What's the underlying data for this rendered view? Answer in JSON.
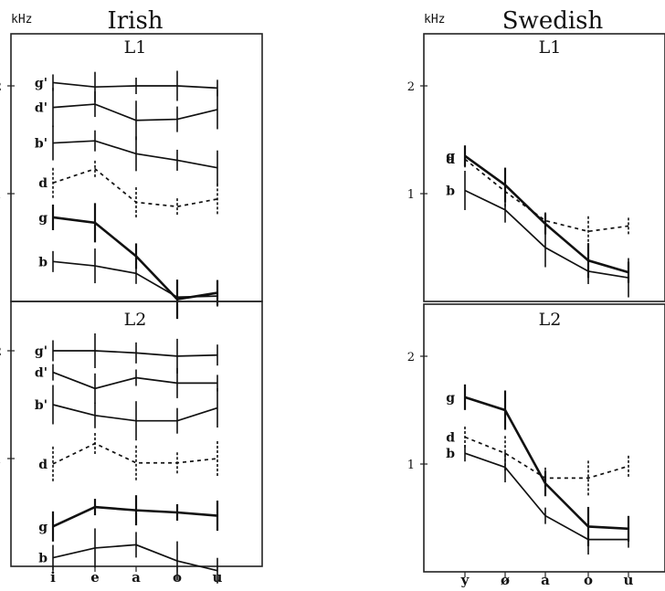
{
  "chart_data": [
    {
      "type": "line",
      "language": "Irish",
      "unit": "kHz",
      "x": [
        "i",
        "e",
        "a",
        "o",
        "u"
      ],
      "ylim": [
        0,
        2.4
      ],
      "yticks": [
        "1",
        "2"
      ],
      "grid": false,
      "panels": [
        {
          "title": "L1",
          "series": [
            {
              "label": "g'",
              "style": "solid",
              "values": [
                2.03,
                1.99,
                2.0,
                2.0,
                1.98
              ]
            },
            {
              "label": "d'",
              "style": "solid",
              "values": [
                1.8,
                1.83,
                1.68,
                1.69,
                1.78
              ]
            },
            {
              "label": "b'",
              "style": "solid",
              "values": [
                1.47,
                1.49,
                1.37,
                1.31,
                1.24
              ]
            },
            {
              "label": "d",
              "style": "dashed",
              "values": [
                1.1,
                1.23,
                0.92,
                0.88,
                0.95
              ]
            },
            {
              "label": "g",
              "style": "solid-bold",
              "values": [
                0.78,
                0.73,
                0.42,
                0.02,
                0.08
              ]
            },
            {
              "label": "b",
              "style": "solid",
              "values": [
                0.37,
                0.33,
                0.26,
                0.04,
                0.05
              ]
            }
          ]
        },
        {
          "title": "L2",
          "series": [
            {
              "label": "g'",
              "style": "solid",
              "values": [
                2.0,
                2.0,
                1.98,
                1.95,
                1.96
              ]
            },
            {
              "label": "d'",
              "style": "solid",
              "values": [
                1.8,
                1.65,
                1.75,
                1.7,
                1.7
              ]
            },
            {
              "label": "b'",
              "style": "solid",
              "values": [
                1.5,
                1.4,
                1.35,
                1.35,
                1.47
              ]
            },
            {
              "label": "d",
              "style": "dashed",
              "values": [
                0.95,
                1.14,
                0.96,
                0.96,
                1.0
              ]
            },
            {
              "label": "g",
              "style": "solid-bold",
              "values": [
                0.37,
                0.55,
                0.52,
                0.5,
                0.47
              ]
            },
            {
              "label": "b",
              "style": "solid",
              "values": [
                0.08,
                0.17,
                0.2,
                0.05,
                -0.04
              ]
            }
          ]
        }
      ]
    },
    {
      "type": "line",
      "language": "Swedish",
      "unit": "kHz",
      "x": [
        "y",
        "ø",
        "a",
        "o",
        "u"
      ],
      "ylim": [
        0,
        2.4
      ],
      "yticks": [
        "1",
        "2"
      ],
      "grid": false,
      "panels": [
        {
          "title": "L1",
          "series": [
            {
              "label": "g",
              "style": "solid-bold",
              "values": [
                1.35,
                1.08,
                0.72,
                0.38,
                0.27
              ]
            },
            {
              "label": "d",
              "style": "dashed",
              "values": [
                1.32,
                1.02,
                0.75,
                0.65,
                0.7
              ]
            },
            {
              "label": "b",
              "style": "solid",
              "values": [
                1.03,
                0.85,
                0.5,
                0.28,
                0.22
              ]
            }
          ]
        },
        {
          "title": "L2",
          "series": [
            {
              "label": "g",
              "style": "solid-bold",
              "values": [
                1.62,
                1.5,
                0.82,
                0.42,
                0.4
              ]
            },
            {
              "label": "d",
              "style": "dashed",
              "values": [
                1.25,
                1.1,
                0.87,
                0.87,
                0.98
              ]
            },
            {
              "label": "b",
              "style": "solid",
              "values": [
                1.1,
                0.97,
                0.52,
                0.3,
                0.3
              ]
            }
          ]
        }
      ]
    }
  ]
}
